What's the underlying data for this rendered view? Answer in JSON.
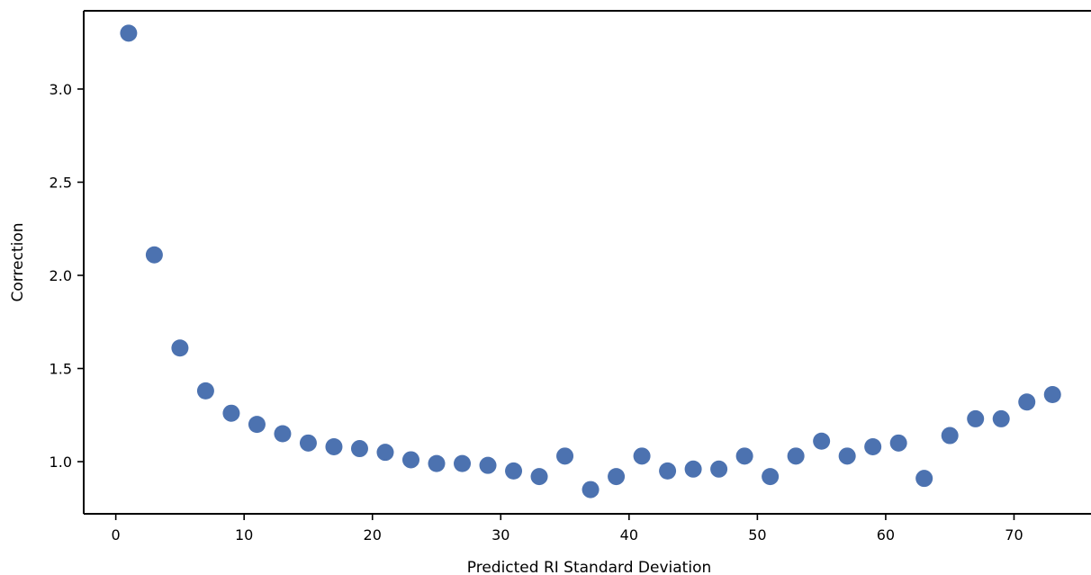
{
  "chart_data": {
    "type": "scatter",
    "xlabel": "Predicted RI Standard Deviation",
    "ylabel": "Correction",
    "xlim": [
      -2.5,
      76
    ],
    "ylim": [
      0.72,
      3.42
    ],
    "xticks": [
      0,
      10,
      20,
      30,
      40,
      50,
      60,
      70
    ],
    "xtick_labels": [
      "0",
      "10",
      "20",
      "30",
      "40",
      "50",
      "60",
      "70"
    ],
    "yticks": [
      1.0,
      1.5,
      2.0,
      2.5,
      3.0
    ],
    "ytick_labels": [
      "1.0",
      "1.5",
      "2.0",
      "2.5",
      "3.0"
    ],
    "grid": false,
    "colors": {
      "marker": "#4c72b0"
    },
    "series": [
      {
        "x": [
          1,
          3,
          5,
          7,
          9,
          11,
          13,
          15,
          17,
          19,
          21,
          23,
          25,
          27,
          29,
          31,
          33,
          35,
          37,
          39,
          41,
          43,
          45,
          47,
          49,
          51,
          53,
          55,
          57,
          59,
          61,
          63,
          65,
          67,
          69,
          71,
          73
        ],
        "y": [
          3.3,
          2.11,
          1.61,
          1.38,
          1.26,
          1.2,
          1.15,
          1.1,
          1.08,
          1.07,
          1.05,
          1.01,
          0.99,
          0.99,
          0.98,
          0.95,
          0.92,
          1.03,
          0.85,
          0.92,
          1.03,
          0.95,
          0.96,
          0.96,
          1.03,
          0.92,
          1.03,
          1.11,
          1.03,
          1.08,
          1.1,
          0.91,
          1.14,
          1.23,
          1.23,
          1.32,
          1.36
        ]
      }
    ]
  }
}
